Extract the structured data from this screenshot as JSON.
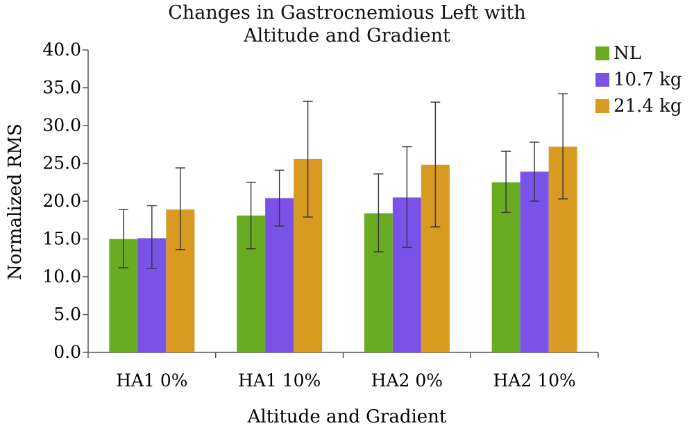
{
  "chart_data": {
    "type": "bar",
    "title_lines": [
      "Changes in Gastrocnemious Left with",
      "Altitude and Gradient"
    ],
    "xlabel": "Altitude and Gradient",
    "ylabel": "Normalized RMS",
    "categories": [
      "HA1 0%",
      "HA1 10%",
      "HA2 0%",
      "HA2 10%"
    ],
    "ylim": [
      0,
      40
    ],
    "yticks": [
      "0.0",
      "5.0",
      "10.0",
      "15.0",
      "20.0",
      "25.0",
      "30.0",
      "35.0",
      "40.0"
    ],
    "grid": false,
    "legend_position": "top-right",
    "series": [
      {
        "name": "NL",
        "color": "#6aab24",
        "values": [
          15.0,
          18.1,
          18.4,
          22.5
        ],
        "error_low": [
          11.2,
          13.7,
          13.3,
          18.5
        ],
        "error_high": [
          18.9,
          22.5,
          23.6,
          26.6
        ]
      },
      {
        "name": "10.7 kg",
        "color": "#7b52e8",
        "values": [
          15.1,
          20.4,
          20.5,
          23.9
        ],
        "error_low": [
          11.1,
          16.7,
          13.9,
          20.0
        ],
        "error_high": [
          19.4,
          24.1,
          27.2,
          27.8
        ]
      },
      {
        "name": "21.4 kg",
        "color": "#d99a22",
        "values": [
          18.9,
          25.6,
          24.8,
          27.2
        ],
        "error_low": [
          13.6,
          17.9,
          16.6,
          20.3
        ],
        "error_high": [
          24.4,
          33.2,
          33.1,
          34.2
        ]
      }
    ]
  }
}
